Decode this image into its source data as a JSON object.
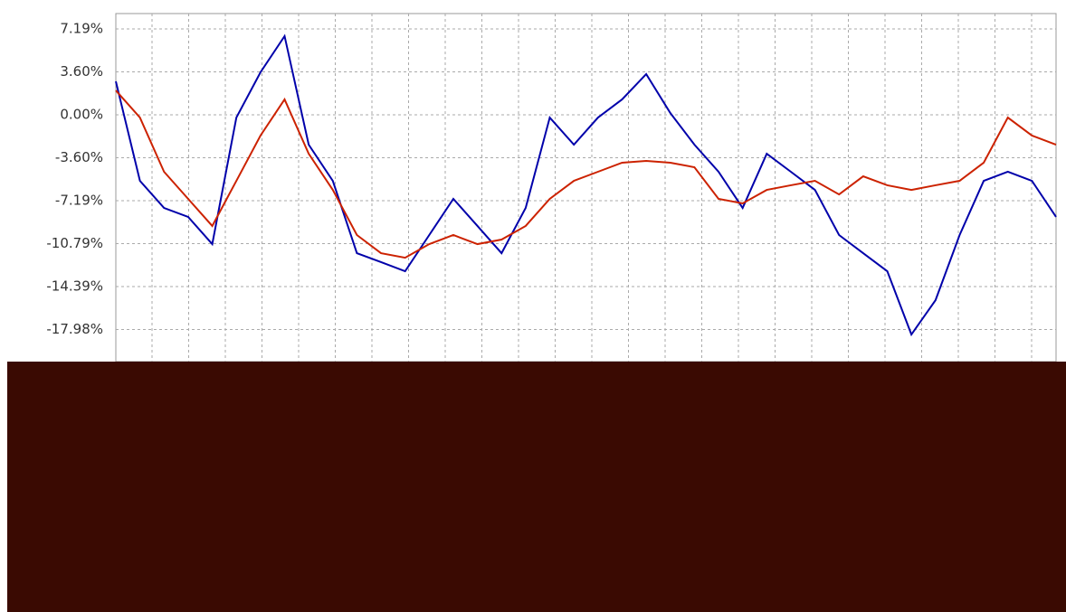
{
  "chart_data": {
    "type": "line",
    "categories": [
      null,
      null,
      null,
      null,
      null,
      null,
      null,
      null,
      null,
      null,
      null,
      null,
      null,
      null,
      null,
      null,
      null,
      null,
      null,
      null,
      null,
      null,
      null,
      null,
      null,
      null,
      null,
      null,
      null,
      null,
      null,
      null,
      null,
      null,
      null,
      null,
      null,
      null,
      null,
      null
    ],
    "series": [
      {
        "color": "#0000aa",
        "values": [
          2.8,
          -5.53,
          -7.8,
          -8.55,
          -10.83,
          -0.23,
          3.56,
          6.59,
          -2.5,
          -5.53,
          -11.59,
          -12.34,
          -13.1,
          -10.07,
          -7.04,
          -9.31,
          -11.59,
          -7.8,
          -0.23,
          -2.5,
          -0.23,
          1.29,
          3.41,
          0.15,
          -2.5,
          -4.77,
          -7.8,
          -3.26,
          -4.77,
          -6.29,
          -10.07,
          -11.59,
          -13.1,
          -18.4,
          -15.53,
          -10.07,
          -5.53,
          -4.77,
          -5.53,
          -8.55
        ]
      },
      {
        "color": "#cc2200",
        "values": [
          2.04,
          -0.23,
          -4.77,
          -7.04,
          -9.31,
          -5.53,
          -1.74,
          1.29,
          -3.26,
          -6.29,
          -10.07,
          -11.59,
          -11.97,
          -10.83,
          -10.07,
          -10.83,
          -10.45,
          -9.31,
          -7.04,
          -5.53,
          -4.77,
          -4.01,
          -3.86,
          -4.01,
          -4.39,
          -7.04,
          -7.42,
          -6.29,
          -5.9,
          -5.53,
          -6.67,
          -5.15,
          -5.9,
          -6.29,
          -5.9,
          -5.53,
          -4.01,
          -0.23,
          -1.74,
          -2.5
        ]
      }
    ],
    "ylim": [
      -20.67,
      8.48
    ],
    "yticks": [
      {
        "value": 7.19,
        "label": "7.19%"
      },
      {
        "value": 3.6,
        "label": "3.60%"
      },
      {
        "value": 0,
        "label": "0.00%"
      },
      {
        "value": -3.6,
        "label": "-3.60%"
      },
      {
        "value": -7.19,
        "label": "-7.19%"
      },
      {
        "value": -10.79,
        "label": "-10.79%"
      },
      {
        "value": -14.39,
        "label": "-14.39%"
      },
      {
        "value": -17.98,
        "label": "-17.98%"
      }
    ],
    "grid": true
  }
}
